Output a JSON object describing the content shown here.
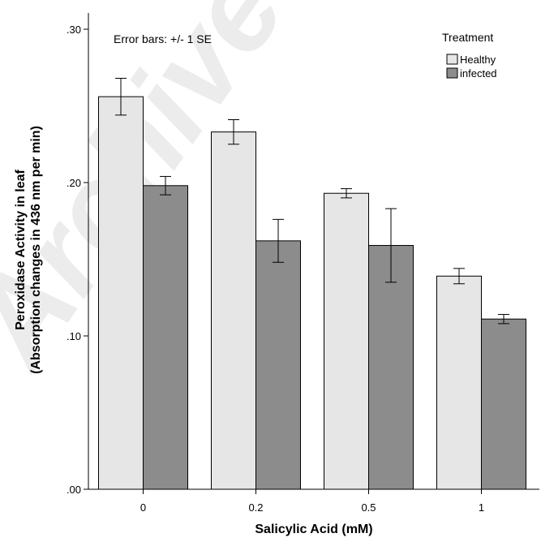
{
  "chart_data": {
    "type": "bar",
    "xlabel": "Salicylic Acid (mM)",
    "ylabel_line1": "Peroxidase Activity in leaf",
    "ylabel_line2": "(Absorption changes in 436 nm per min)",
    "annotation": "Error bars: +/- 1 SE",
    "watermark": "Archive of SID",
    "categories": [
      "0",
      "0.2",
      "0.5",
      "1"
    ],
    "ylim": [
      0,
      0.3
    ],
    "yticks": [
      0.0,
      0.1,
      0.2,
      0.3
    ],
    "ytick_labels": [
      ".00",
      ".10",
      ".20",
      ".30"
    ],
    "grid": false,
    "legend": {
      "title": "Treatment",
      "position": "top-right"
    },
    "series": [
      {
        "name": "Healthy",
        "color": "#e6e6e6",
        "values": [
          0.256,
          0.233,
          0.193,
          0.139
        ],
        "se": [
          0.012,
          0.008,
          0.003,
          0.005
        ]
      },
      {
        "name": "infected",
        "color": "#8c8c8c",
        "values": [
          0.198,
          0.162,
          0.159,
          0.111
        ],
        "se": [
          0.006,
          0.014,
          0.024,
          0.003
        ]
      }
    ]
  }
}
